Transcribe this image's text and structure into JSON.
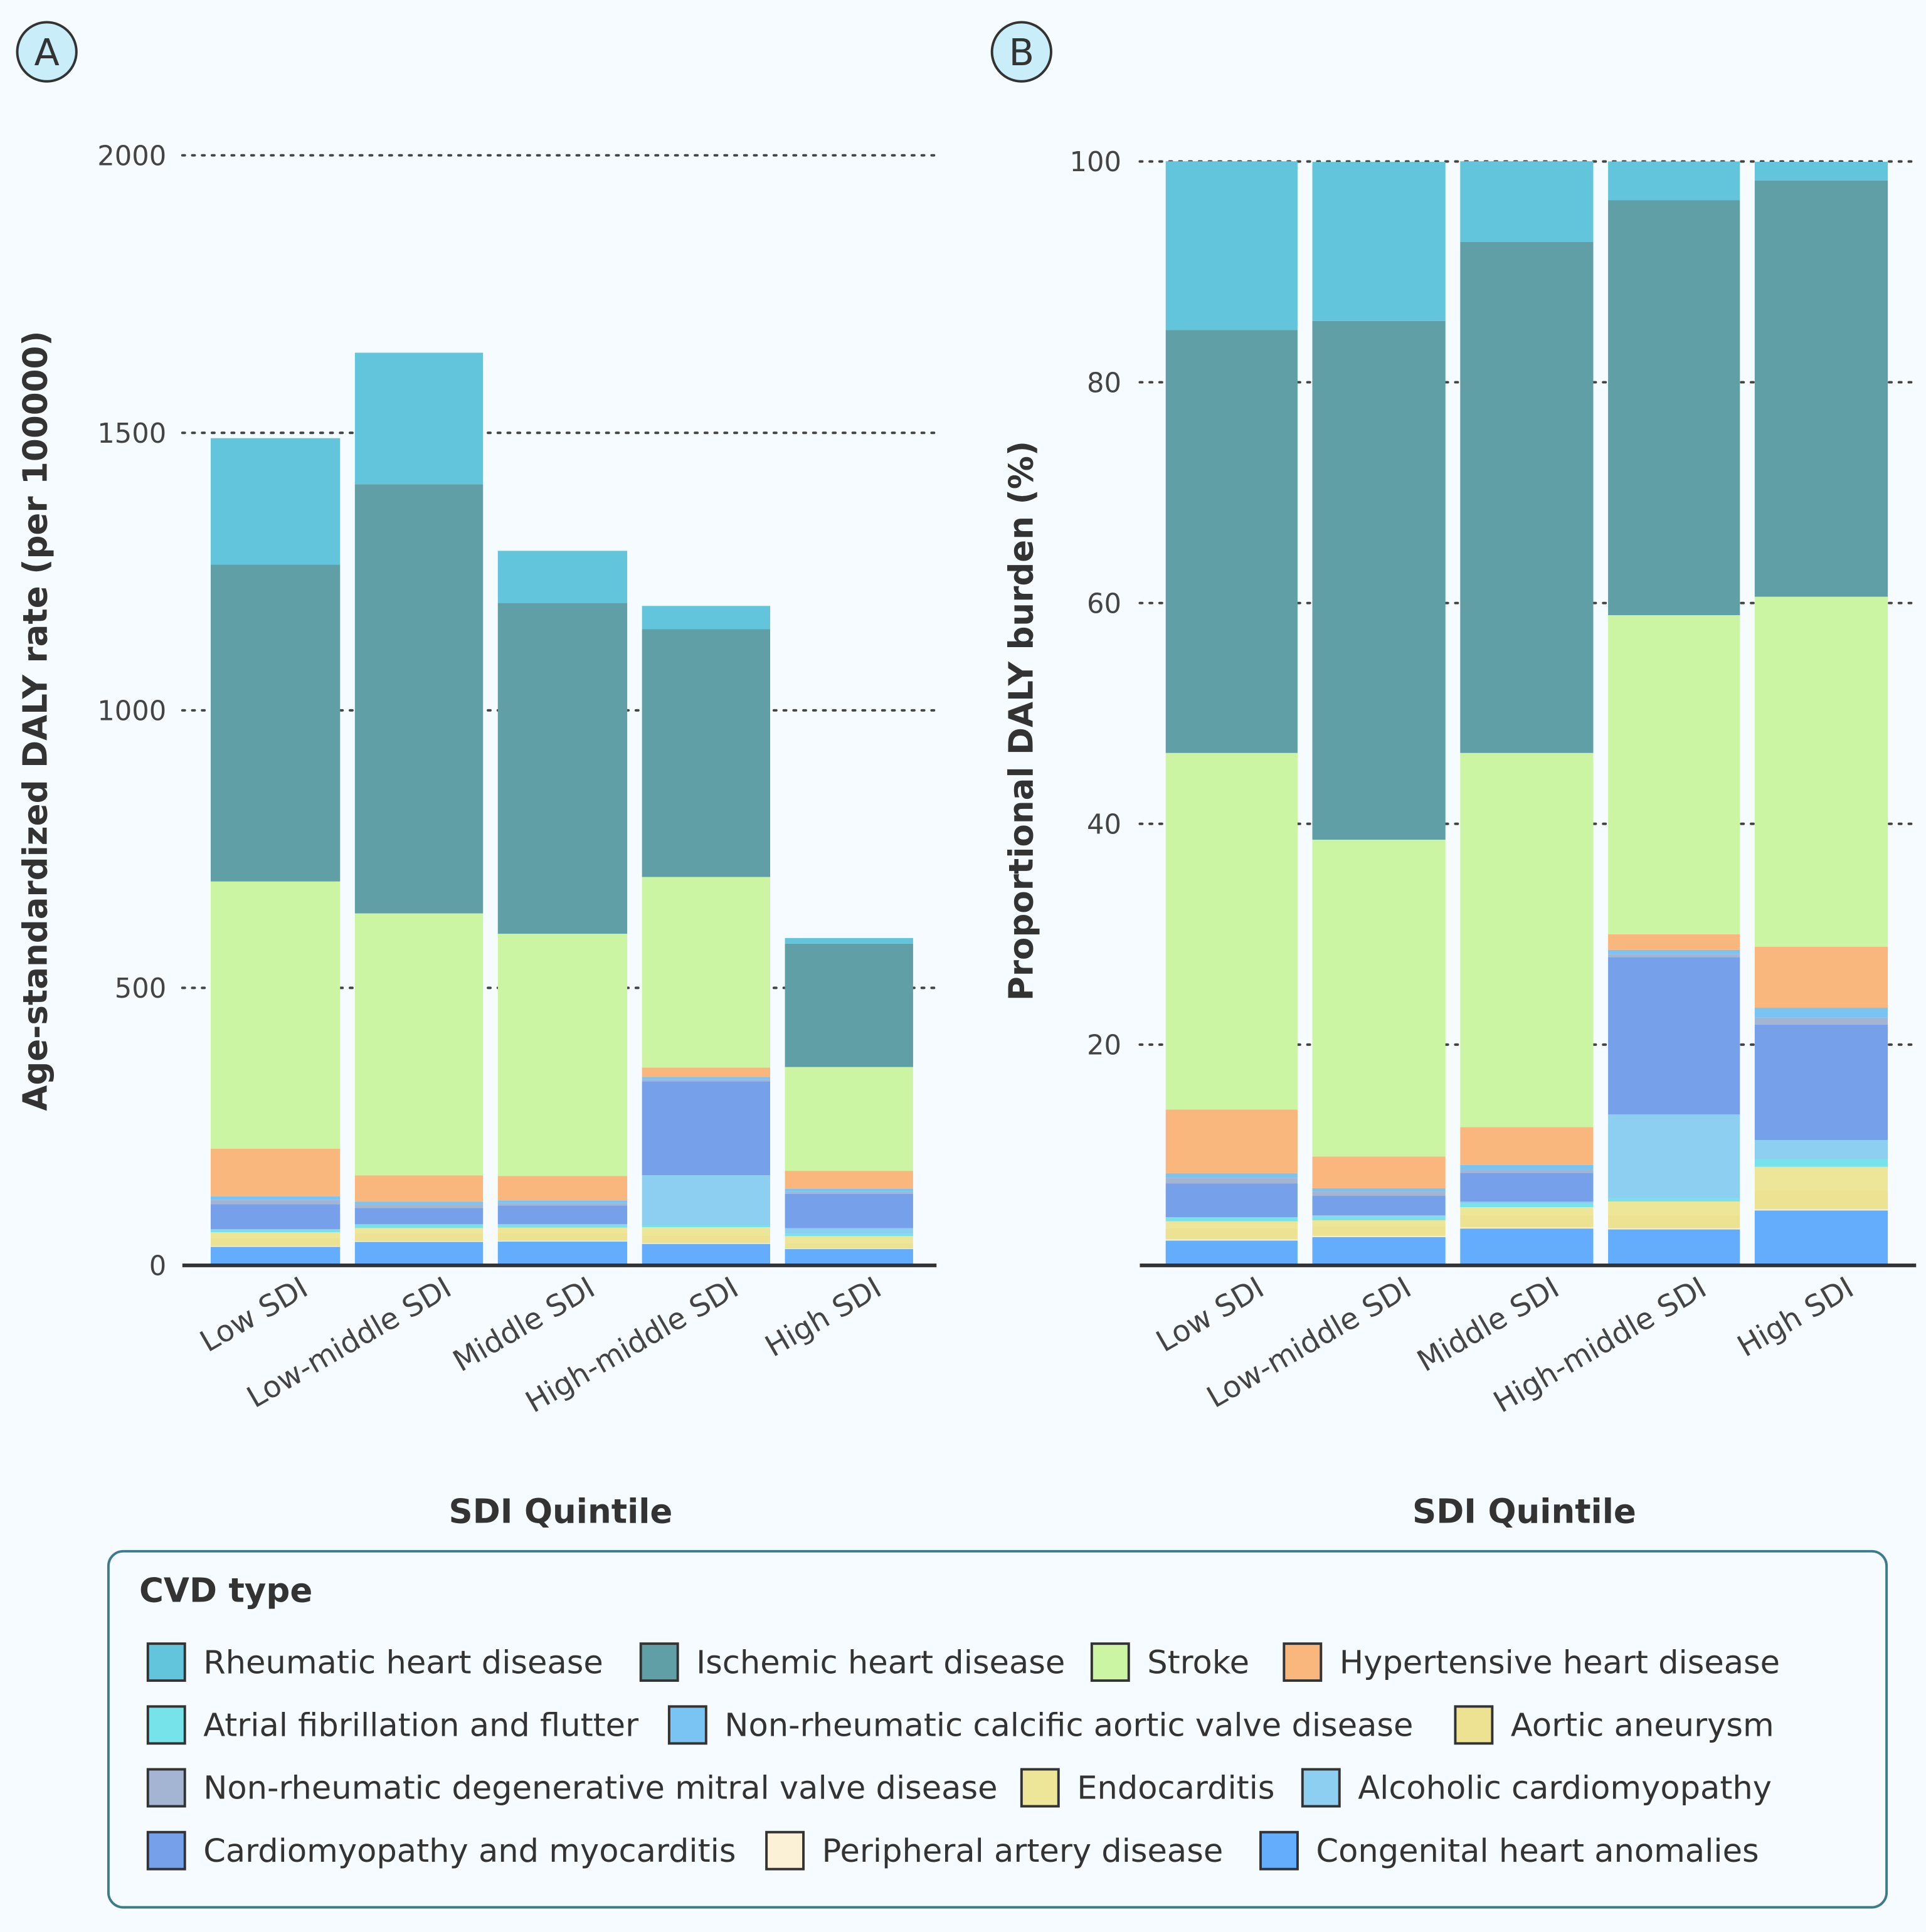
{
  "colors": {
    "background": "#f5fbfe",
    "panel_badge": "#c9eefa",
    "legend_border": "#3d7a8a"
  },
  "legend": {
    "title": "CVD type",
    "rows": [
      [
        "Rheumatic heart disease",
        "Ischemic heart disease",
        "Stroke",
        "Hypertensive heart disease"
      ],
      [
        "Atrial fibrillation and flutter",
        "Non-rheumatic calcific aortic valve disease",
        "Aortic aneurysm"
      ],
      [
        "Non-rheumatic degenerative mitral valve disease",
        "Endocarditis",
        "Alcoholic cardiomyopathy"
      ],
      [
        "Cardiomyopathy and myocarditis",
        "Peripheral artery disease",
        "Congenital heart anomalies"
      ]
    ]
  },
  "chart_data": [
    {
      "panel": "A",
      "type": "bar",
      "stacked": true,
      "xlabel": "SDI Quintile",
      "ylabel": "Age-standardized DALY rate (per 100000)",
      "ylim": [
        0,
        2000
      ],
      "yticks": [
        0,
        500,
        1000,
        1500,
        2000
      ],
      "grid": "horizontal dotted",
      "categories": [
        "Low SDI",
        "Low-middle SDI",
        "Middle SDI",
        "High-middle SDI",
        "High SDI"
      ],
      "series": [
        {
          "name": "Congenital heart anomalies",
          "color": "#63adfc",
          "values": [
            33.5,
            42.3,
            43.0,
            38.7,
            29.4
          ]
        },
        {
          "name": "Peripheral artery disease",
          "color": "#fbf1d6",
          "values": [
            1.5,
            1.6,
            1.3,
            1.2,
            0.6
          ]
        },
        {
          "name": "Aortic aneurysm",
          "color": "#ece291",
          "values": [
            14.9,
            14.5,
            14.7,
            14.5,
            10.2
          ]
        },
        {
          "name": "Endocarditis",
          "color": "#ede699",
          "values": [
            9.7,
            8.9,
            8.9,
            14.4,
            12.5
          ]
        },
        {
          "name": "Atrial fibrillation and flutter",
          "color": "#76e2ea",
          "values": [
            4.8,
            4.9,
            3.9,
            3.4,
            4.1
          ]
        },
        {
          "name": "Alcoholic cardiomyopathy",
          "color": "#8dcff1",
          "values": [
            0.7,
            2.3,
            2.6,
            90.2,
            10.3
          ]
        },
        {
          "name": "Cardiomyopathy and myocarditis",
          "color": "#76a1ea",
          "values": [
            45.3,
            29.1,
            33.7,
            169.4,
            61.7
          ]
        },
        {
          "name": "Non-rheumatic degenerative mitral valve disease",
          "color": "#a4b5d4",
          "values": [
            7.9,
            6.4,
            3.9,
            3.0,
            3.7
          ]
        },
        {
          "name": "Non-rheumatic calcific aortic valve disease",
          "color": "#79c4f2",
          "values": [
            6.0,
            4.9,
            5.1,
            4.8,
            5.3
          ]
        },
        {
          "name": "Hypertensive heart disease",
          "color": "#f9b77e",
          "values": [
            86.1,
            47.2,
            44.1,
            16.9,
            32.6
          ]
        },
        {
          "name": "Stroke",
          "color": "#ccf5a3",
          "values": [
            481.3,
            472.1,
            436.3,
            343.3,
            187.0
          ]
        },
        {
          "name": "Ischemic heart disease",
          "color": "#5f9fa5",
          "values": [
            570.7,
            773.2,
            595.9,
            446.7,
            222.4
          ]
        },
        {
          "name": "Rheumatic heart disease",
          "color": "#63c5dc",
          "values": [
            228.0,
            236.9,
            94.0,
            41.6,
            10.0
          ]
        }
      ]
    },
    {
      "panel": "B",
      "type": "bar",
      "stacked": true,
      "xlabel": "SDI Quintile",
      "ylabel": "Proportional DALY burden (%)",
      "ylim": [
        0,
        100
      ],
      "yticks": [
        20,
        40,
        60,
        80,
        100
      ],
      "grid": "horizontal dotted",
      "categories": [
        "Low SDI",
        "Low-middle SDI",
        "Middle SDI",
        "High-middle SDI",
        "High SDI"
      ],
      "series": [
        {
          "name": "Congenital heart anomalies",
          "color": "#63adfc",
          "values": [
            2.25,
            2.57,
            3.34,
            3.26,
            4.98
          ]
        },
        {
          "name": "Peripheral artery disease",
          "color": "#fbf1d6",
          "values": [
            0.1,
            0.1,
            0.1,
            0.1,
            0.1
          ]
        },
        {
          "name": "Aortic aneurysm",
          "color": "#ece291",
          "values": [
            1.0,
            0.88,
            1.14,
            1.22,
            1.73
          ]
        },
        {
          "name": "Endocarditis",
          "color": "#ede699",
          "values": [
            0.65,
            0.54,
            0.69,
            1.21,
            2.12
          ]
        },
        {
          "name": "Atrial fibrillation and flutter",
          "color": "#76e2ea",
          "values": [
            0.32,
            0.3,
            0.3,
            0.29,
            0.69
          ]
        },
        {
          "name": "Alcoholic cardiomyopathy",
          "color": "#8dcff1",
          "values": [
            0.05,
            0.14,
            0.2,
            7.59,
            1.74
          ]
        },
        {
          "name": "Cardiomyopathy and myocarditis",
          "color": "#76a1ea",
          "values": [
            3.04,
            1.77,
            2.62,
            14.26,
            10.46
          ]
        },
        {
          "name": "Non-rheumatic degenerative mitral valve disease",
          "color": "#a4b5d4",
          "values": [
            0.53,
            0.39,
            0.3,
            0.25,
            0.63
          ]
        },
        {
          "name": "Non-rheumatic calcific aortic valve disease",
          "color": "#79c4f2",
          "values": [
            0.4,
            0.3,
            0.4,
            0.4,
            0.89
          ]
        },
        {
          "name": "Hypertensive heart disease",
          "color": "#f9b77e",
          "values": [
            5.78,
            2.87,
            3.43,
            1.42,
            5.53
          ]
        },
        {
          "name": "Stroke",
          "color": "#ccf5a3",
          "values": [
            32.3,
            28.7,
            33.9,
            28.9,
            31.7
          ]
        },
        {
          "name": "Ischemic heart disease",
          "color": "#5f9fa5",
          "values": [
            38.3,
            47.0,
            46.3,
            37.6,
            37.7
          ]
        },
        {
          "name": "Rheumatic heart disease",
          "color": "#63c5dc",
          "values": [
            15.3,
            14.4,
            7.3,
            3.5,
            1.7
          ]
        }
      ]
    }
  ]
}
